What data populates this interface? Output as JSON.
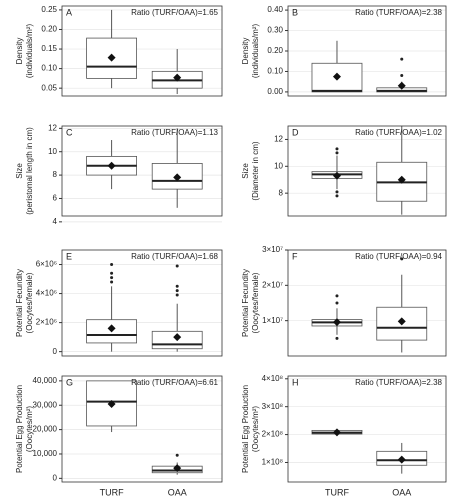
{
  "chart_data": [
    {
      "type": "box",
      "letter": "A",
      "annotation": "Ratio (TURF/OAA)=1.65",
      "ylabel": [
        "Density",
        "(individuals/m²)"
      ],
      "ylim": [
        0.03,
        0.26
      ],
      "yticks": [
        0.05,
        {
          "value": 0.1,
          "label": "0.10"
        },
        0.15,
        {
          "value": 0.2,
          "label": "0.20"
        },
        0.25
      ],
      "boxes": [
        {
          "whisker_low": 0.05,
          "q1": 0.075,
          "median": 0.105,
          "q3": 0.178,
          "whisker_high": 0.25,
          "mean": 0.128,
          "outliers": []
        },
        {
          "whisker_low": 0.035,
          "q1": 0.05,
          "median": 0.07,
          "q3": 0.093,
          "whisker_high": 0.15,
          "mean": 0.077,
          "outliers": []
        }
      ]
    },
    {
      "type": "box",
      "letter": "B",
      "annotation": "Ratio (TURF/OAA)=2.38",
      "ylabel": [
        "Density",
        "(individuals/m²)"
      ],
      "ylim": [
        -0.02,
        0.42
      ],
      "yticks": [
        {
          "value": 0,
          "label": "0.00"
        },
        {
          "value": 0.1,
          "label": "0.10"
        },
        {
          "value": 0.2,
          "label": "0.20"
        },
        {
          "value": 0.3,
          "label": "0.30"
        },
        {
          "value": 0.4,
          "label": "0.40"
        }
      ],
      "boxes": [
        {
          "whisker_low": 0,
          "q1": 0,
          "median": 0.005,
          "q3": 0.14,
          "whisker_high": 0.25,
          "mean": 0.075,
          "outliers": []
        },
        {
          "whisker_low": 0,
          "q1": 0,
          "median": 0.005,
          "q3": 0.02,
          "whisker_high": 0.05,
          "mean": 0.03,
          "outliers": [
            0.08,
            0.16
          ]
        }
      ]
    },
    {
      "type": "box",
      "letter": "C",
      "annotation": "Ratio (TURF/OAA)=1.13",
      "ylabel": [
        "Size",
        "(peristomal length in cm)"
      ],
      "ylim": [
        4.5,
        12.2
      ],
      "yticks": [
        4,
        6,
        8,
        10,
        12
      ],
      "boxes": [
        {
          "whisker_low": 6.8,
          "q1": 8,
          "median": 8.8,
          "q3": 9.6,
          "whisker_high": 11,
          "mean": 8.8,
          "outliers": []
        },
        {
          "whisker_low": 5.2,
          "q1": 6.8,
          "median": 7.5,
          "q3": 9,
          "whisker_high": 12,
          "mean": 7.8,
          "outliers": []
        }
      ]
    },
    {
      "type": "box",
      "letter": "D",
      "annotation": "Ratio (TURF/OAA)=1.02",
      "ylabel": [
        "Size",
        "(Diameter in cm)"
      ],
      "ylim": [
        6.3,
        13
      ],
      "yticks": [
        8,
        10,
        12
      ],
      "boxes": [
        {
          "whisker_low": 8.3,
          "q1": 9.1,
          "median": 9.4,
          "q3": 9.6,
          "whisker_high": 10.8,
          "mean": 9.3,
          "outliers": [
            7.8,
            8.1,
            11,
            11.3
          ]
        },
        {
          "whisker_low": 6.4,
          "q1": 7.4,
          "median": 8.8,
          "q3": 10.3,
          "whisker_high": 13,
          "mean": 9,
          "outliers": []
        }
      ]
    },
    {
      "type": "box",
      "letter": "E",
      "annotation": "Ratio (TURF/OAA)=1.68",
      "ylabel": [
        "Potential Fecundity",
        "(Oocytes/female)"
      ],
      "ylim": [
        -300000,
        7000000
      ],
      "yticks": [
        0,
        {
          "value": 2000000,
          "label": "2×10⁶"
        },
        {
          "value": 4000000,
          "label": "4×10⁶"
        },
        {
          "value": 6000000,
          "label": "6×10⁶"
        }
      ],
      "boxes": [
        {
          "whisker_low": 0,
          "q1": 600000,
          "median": 1150000,
          "q3": 2200000,
          "whisker_high": 4500000,
          "mean": 1600000,
          "outliers": [
            4800000,
            5100000,
            5400000,
            6000000
          ]
        },
        {
          "whisker_low": 0,
          "q1": 200000,
          "median": 500000,
          "q3": 1400000,
          "whisker_high": 3300000,
          "mean": 1000000,
          "outliers": [
            3900000,
            4200000,
            4500000,
            5900000
          ]
        }
      ]
    },
    {
      "type": "box",
      "letter": "F",
      "annotation": "Ratio (TURF/OAA)=0.94",
      "ylabel": [
        "Potential Fecundity",
        "(Oocytes/female)"
      ],
      "ylim": [
        0,
        30000000
      ],
      "yticks": [
        {
          "value": 10000000,
          "label": "1×10⁷"
        },
        {
          "value": 20000000,
          "label": "2×10⁷"
        },
        {
          "value": 30000000,
          "label": "3×10⁷"
        }
      ],
      "boxes": [
        {
          "whisker_low": 6000000,
          "q1": 8500000,
          "median": 9500000,
          "q3": 10300000,
          "whisker_high": 13500000,
          "mean": 9600000,
          "outliers": [
            5000000,
            15000000,
            17000000
          ]
        },
        {
          "whisker_low": 1000000,
          "q1": 4500000,
          "median": 8000000,
          "q3": 13800000,
          "whisker_high": 23000000,
          "mean": 9800000,
          "outliers": [
            27500000
          ]
        }
      ]
    },
    {
      "type": "box",
      "letter": "G",
      "annotation": "Ratio (TURF/OAA)=6.61",
      "ylabel": [
        "Potential Egg Production",
        "(Oocytes/m²)"
      ],
      "categories": [
        "TURF",
        "OAA"
      ],
      "ylim": [
        -1500,
        42000
      ],
      "yticks": [
        0,
        {
          "value": 10000,
          "label": "10,000"
        },
        {
          "value": 20000,
          "label": "20,000"
        },
        {
          "value": 30000,
          "label": "30,000"
        },
        {
          "value": 40000,
          "label": "40,000"
        }
      ],
      "boxes": [
        {
          "whisker_low": 19000,
          "q1": 21500,
          "median": 31500,
          "q3": 40000,
          "whisker_high": 40000,
          "mean": 30500,
          "outliers": []
        },
        {
          "whisker_low": 1500,
          "q1": 2300,
          "median": 3200,
          "q3": 5000,
          "whisker_high": 6500,
          "mean": 4200,
          "outliers": [
            9500
          ]
        }
      ]
    },
    {
      "type": "box",
      "letter": "H",
      "annotation": "Ratio (TURF/OAA)=2.38",
      "ylabel": [
        "Potential Egg Production",
        "(Oocytes/m²)"
      ],
      "categories": [
        "TURF",
        "OAA"
      ],
      "ylim": [
        30000000,
        410000000
      ],
      "yticks": [
        {
          "value": 100000000,
          "label": "1×10⁸"
        },
        {
          "value": 200000000,
          "label": "2×10⁸"
        },
        {
          "value": 300000000,
          "label": "3×10⁸"
        },
        {
          "value": 400000000,
          "label": "4×10⁸"
        }
      ],
      "boxes": [
        {
          "whisker_low": 200000000,
          "q1": 202000000,
          "median": 207000000,
          "q3": 215000000,
          "whisker_high": 220000000,
          "mean": 208000000,
          "outliers": []
        },
        {
          "whisker_low": 60000000,
          "q1": 90000000,
          "median": 108000000,
          "q3": 140000000,
          "whisker_high": 170000000,
          "mean": 110000000,
          "outliers": []
        }
      ]
    }
  ]
}
